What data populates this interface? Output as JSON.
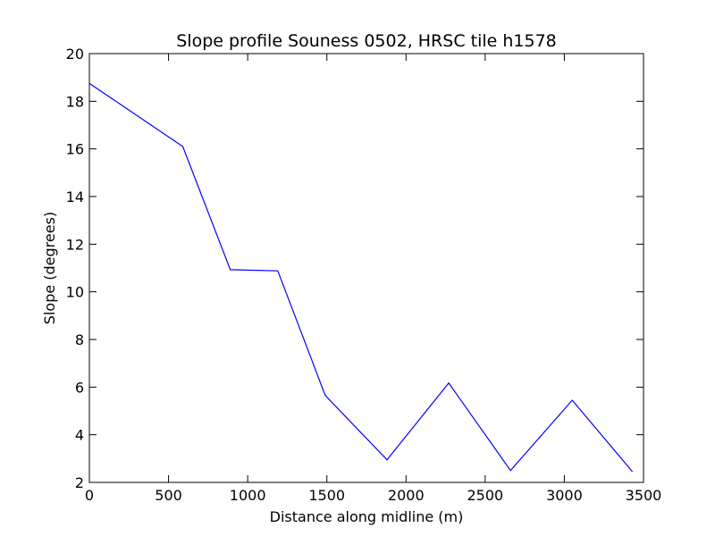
{
  "chart_data": {
    "type": "line",
    "title": "Slope profile Souness 0502, HRSC tile h1578",
    "xlabel": "Distance along midline (m)",
    "ylabel": "Slope (degrees)",
    "xlim": [
      0,
      3500
    ],
    "ylim": [
      2,
      20
    ],
    "xticks": [
      0,
      500,
      1000,
      1500,
      2000,
      2500,
      3000,
      3500
    ],
    "yticks": [
      2,
      4,
      6,
      8,
      10,
      12,
      14,
      16,
      18,
      20
    ],
    "grid": false,
    "series": [
      {
        "color": "#0000ff",
        "x": [
          0,
          590,
          890,
          1190,
          1490,
          1880,
          2270,
          2660,
          3050,
          3430
        ],
        "y": [
          18.75,
          16.1,
          10.93,
          10.88,
          5.65,
          2.95,
          6.17,
          2.5,
          5.45,
          2.45
        ]
      }
    ]
  }
}
